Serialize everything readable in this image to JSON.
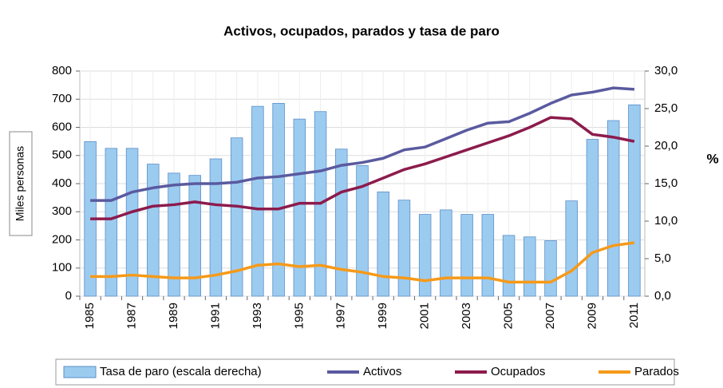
{
  "chart_data": {
    "type": "bar",
    "title": "Activos, ocupados, parados y tasa de paro",
    "categories": [
      "1985",
      null,
      "1987",
      null,
      "1989",
      null,
      "1991",
      null,
      "1993",
      null,
      "1995",
      null,
      "1997",
      null,
      "1999",
      null,
      "2001",
      null,
      "2003",
      null,
      "2005",
      null,
      "2007",
      null,
      "2009",
      null,
      "2011"
    ],
    "ylabel": "Miles personas",
    "y2label": "%",
    "ylim": [
      0,
      800
    ],
    "yticks": [
      0,
      100,
      200,
      300,
      400,
      500,
      600,
      700,
      800
    ],
    "y2lim": [
      0,
      30
    ],
    "y2ticks": [
      {
        "value": 0,
        "label": "0,0"
      },
      {
        "value": 5,
        "label": "5,0"
      },
      {
        "value": 10,
        "label": "10,0"
      },
      {
        "value": 15,
        "label": "15,0"
      },
      {
        "value": 20,
        "label": "20,0"
      },
      {
        "value": 25,
        "label": "25,0"
      },
      {
        "value": 30,
        "label": "30,0"
      }
    ],
    "grid": true,
    "series": [
      {
        "name": "Tasa de paro (escala derecha)",
        "type": "bar",
        "axis": "y2",
        "color": "#9ccbf0",
        "values": [
          20.6,
          19.7,
          19.7,
          17.6,
          16.4,
          16.1,
          18.3,
          21.1,
          25.3,
          25.7,
          23.6,
          24.6,
          19.6,
          17.4,
          13.9,
          12.8,
          10.9,
          11.5,
          10.9,
          10.9,
          8.1,
          7.9,
          7.4,
          12.7,
          20.9,
          23.4,
          25.5
        ]
      },
      {
        "name": "Activos",
        "type": "line",
        "color": "#5a5aa0",
        "values": [
          340,
          340,
          370,
          385,
          395,
          400,
          400,
          405,
          420,
          425,
          435,
          445,
          465,
          475,
          490,
          520,
          530,
          560,
          590,
          615,
          620,
          650,
          685,
          715,
          725,
          740,
          735
        ]
      },
      {
        "name": "Ocupados",
        "type": "line",
        "color": "#8c1b4c",
        "values": [
          275,
          275,
          300,
          320,
          325,
          335,
          325,
          320,
          310,
          310,
          330,
          330,
          370,
          390,
          420,
          450,
          470,
          495,
          520,
          545,
          570,
          600,
          635,
          630,
          575,
          565,
          550
        ]
      },
      {
        "name": "Parados",
        "type": "line",
        "color": "#f59a1a",
        "values": [
          70,
          70,
          75,
          70,
          65,
          65,
          75,
          90,
          110,
          115,
          105,
          110,
          95,
          85,
          70,
          65,
          55,
          65,
          65,
          65,
          50,
          50,
          50,
          90,
          155,
          180,
          190
        ]
      }
    ]
  }
}
